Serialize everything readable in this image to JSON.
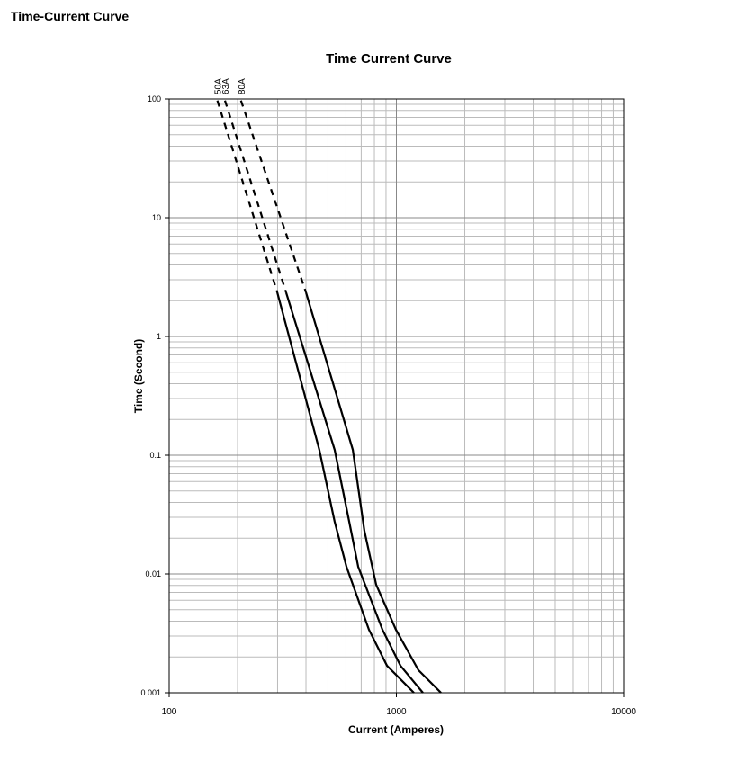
{
  "heading": "Time-Current Curve",
  "chart_data": {
    "type": "line",
    "title": "Time Current Curve",
    "x_label": "Current  (Amperes)",
    "y_label": "Time (Second)",
    "x_log": true,
    "y_log": true,
    "grid": true,
    "xlim": [
      100,
      10000
    ],
    "ylim": [
      0.001,
      100
    ],
    "xticks": [
      100,
      1000,
      10000
    ],
    "yticks": [
      100,
      10,
      1,
      0.1,
      0.01,
      0.001
    ],
    "x_minor_ticks": [
      200,
      300,
      400,
      500,
      600,
      700,
      800,
      900,
      2000,
      3000,
      4000,
      5000,
      6000,
      7000,
      8000,
      9000
    ],
    "y_minor_ticks": [
      0.002,
      0.003,
      0.004,
      0.005,
      0.006,
      0.007,
      0.008,
      0.009,
      0.02,
      0.03,
      0.04,
      0.05,
      0.06,
      0.07,
      0.08,
      0.09,
      0.2,
      0.3,
      0.4,
      0.5,
      0.6,
      0.7,
      0.8,
      0.9,
      2,
      3,
      4,
      5,
      6,
      7,
      8,
      9,
      20,
      30,
      40,
      50,
      60,
      70,
      80,
      90
    ],
    "series": [
      {
        "name": "50A",
        "color": "#000000",
        "segments": [
          {
            "style": "dashed",
            "x": [
              163,
              299
            ],
            "values": [
              97,
              2.35
            ]
          },
          {
            "style": "solid",
            "x": [
              299,
              458,
              535,
              603,
              757,
              909,
              1194
            ],
            "values": [
              2.35,
              0.111,
              0.0275,
              0.0115,
              0.0034,
              0.00169,
              0.001
            ]
          }
        ]
      },
      {
        "name": "63A",
        "color": "#000000",
        "segments": [
          {
            "style": "dashed",
            "x": [
              176,
              327
            ],
            "values": [
              97,
              2.35
            ]
          },
          {
            "style": "solid",
            "x": [
              327,
              535,
              620,
              679,
              868,
              1042,
              1308
            ],
            "values": [
              2.35,
              0.111,
              0.0275,
              0.0115,
              0.0034,
              0.00169,
              0.001
            ]
          }
        ]
      },
      {
        "name": "80A",
        "color": "#000000",
        "segments": [
          {
            "style": "dashed",
            "x": [
              207,
              400
            ],
            "values": [
              97,
              2.35
            ]
          },
          {
            "style": "solid",
            "x": [
              400,
              643,
              723,
              815,
              995,
              1250,
              1571
            ],
            "values": [
              2.35,
              0.111,
              0.0231,
              0.0081,
              0.0034,
              0.00155,
              0.001
            ]
          }
        ]
      }
    ]
  }
}
